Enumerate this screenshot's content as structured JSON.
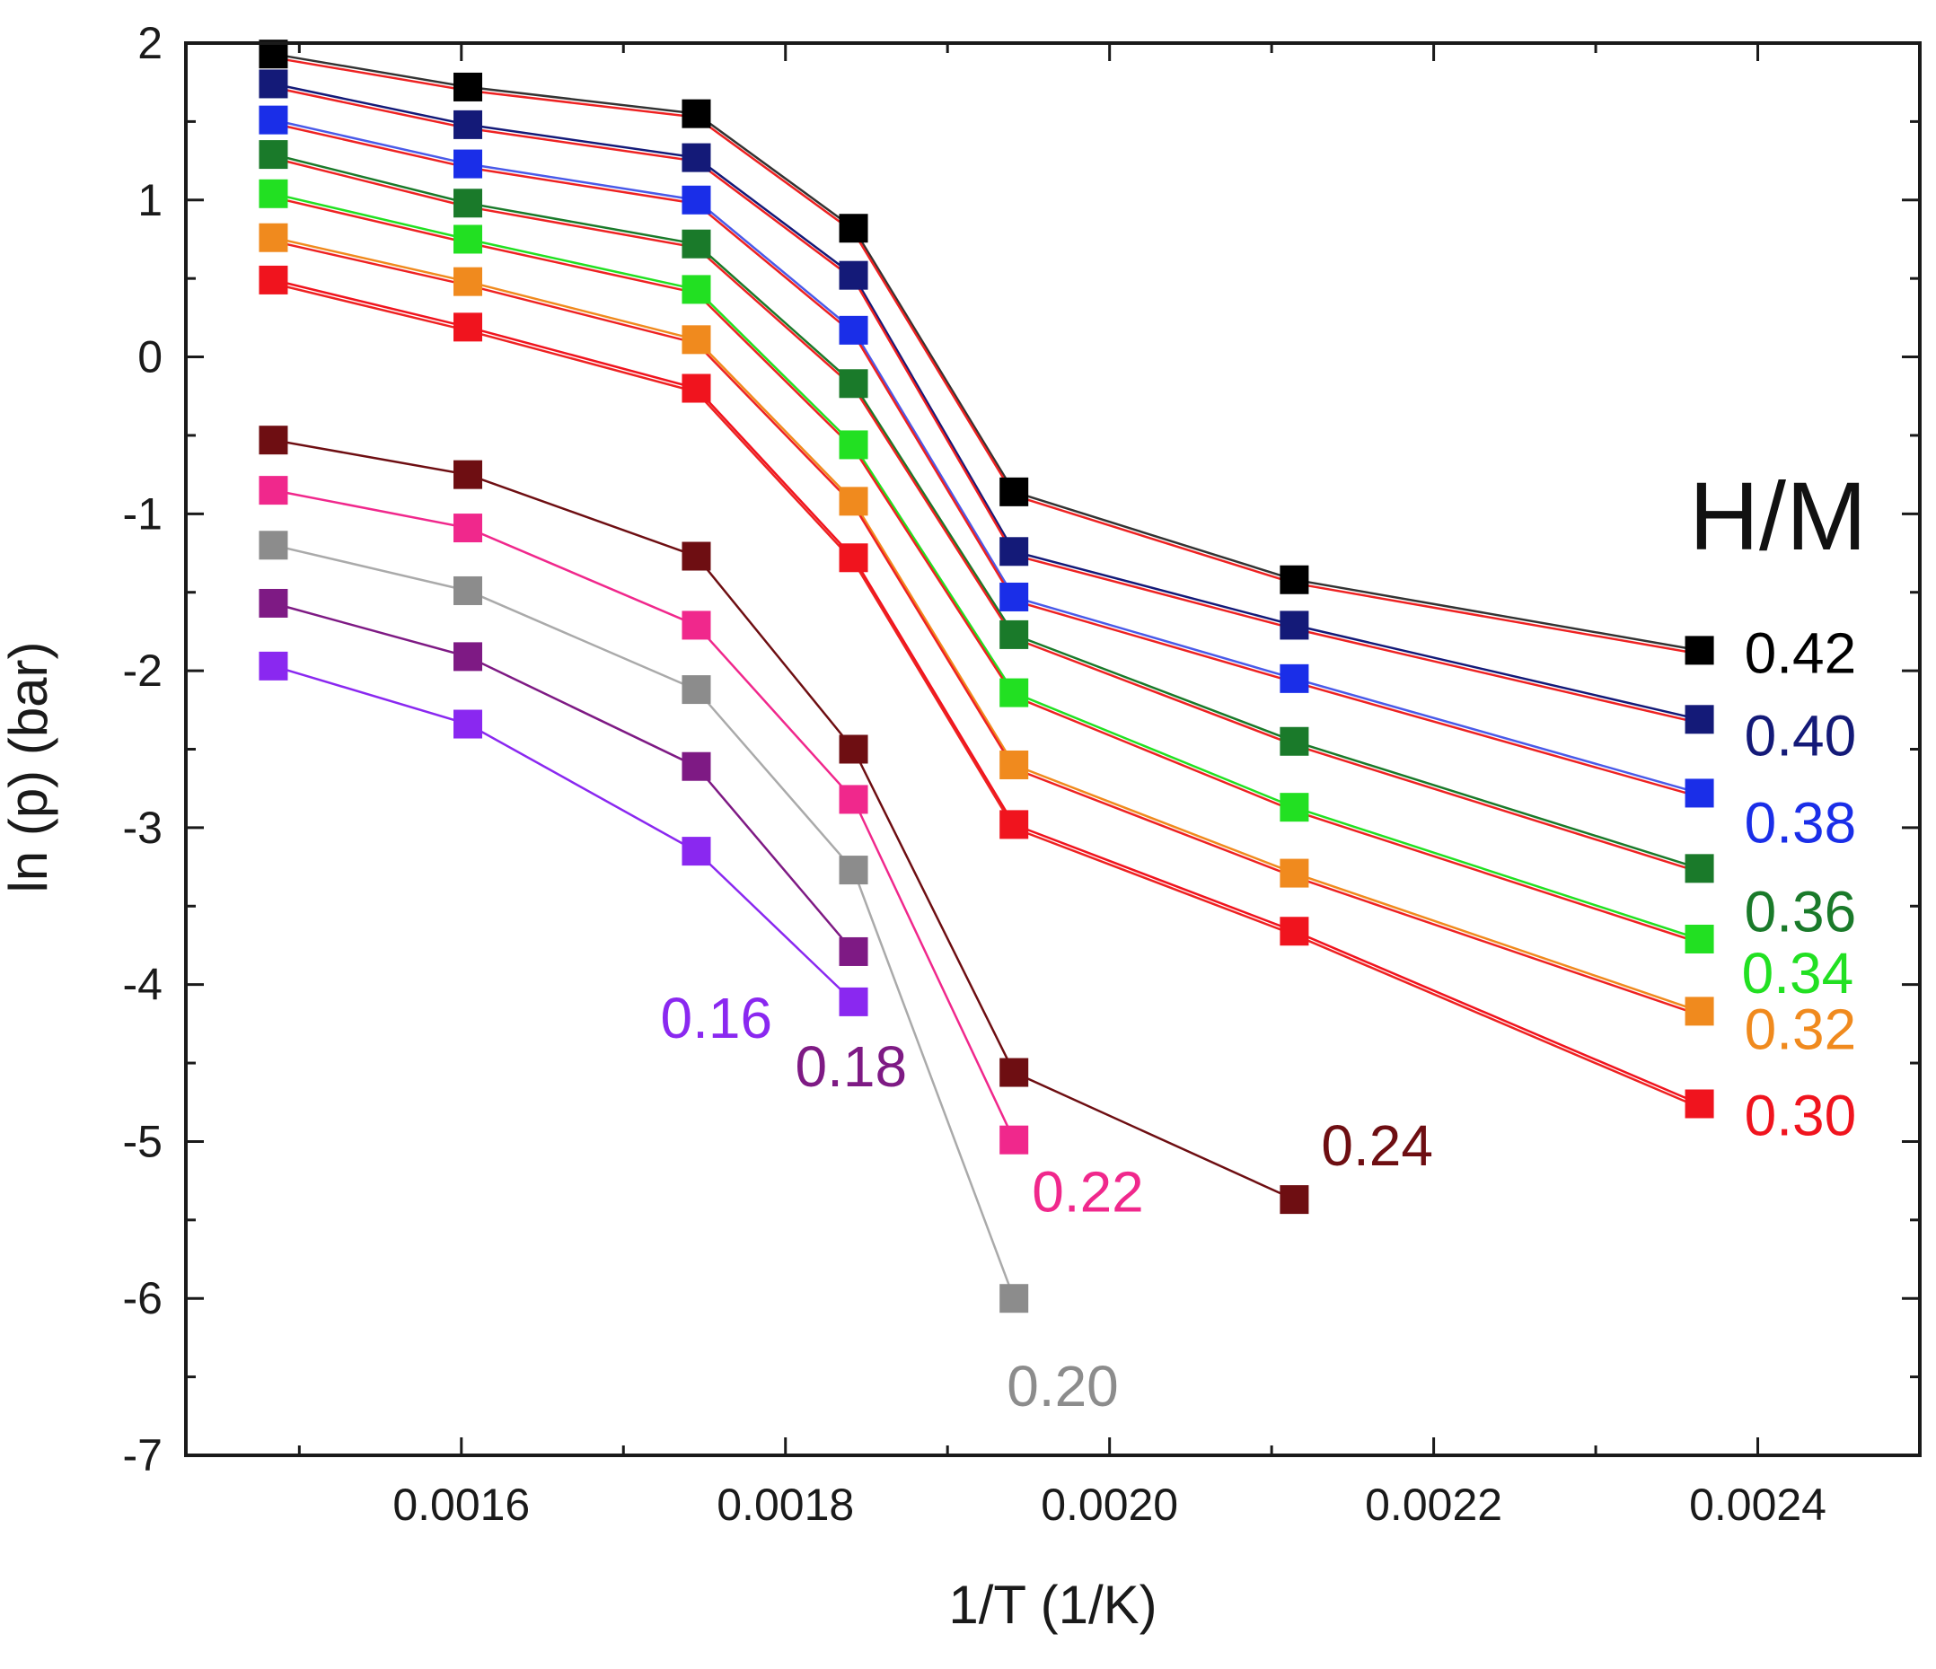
{
  "chart_data": {
    "type": "line",
    "title": "",
    "xlabel": "1/T (1/K)",
    "ylabel": "ln (p) (bar)",
    "xlim": [
      0.00143,
      0.0025
    ],
    "ylim": [
      -7,
      2
    ],
    "x_major_ticks": [
      0.0016,
      0.0018,
      0.002,
      0.0022,
      0.0024
    ],
    "x_tick_labels": [
      "0.0016",
      "0.0018",
      "0.0020",
      "0.0022",
      "0.0024"
    ],
    "x_minor_ticks": [
      0.0015,
      0.0017,
      0.0019,
      0.0021,
      0.0023
    ],
    "y_major_ticks": [
      2,
      1,
      0,
      -1,
      -2,
      -3,
      -4,
      -5,
      -6,
      -7
    ],
    "y_tick_labels": [
      "2",
      "1",
      "0",
      "-1",
      "-2",
      "-3",
      "-4",
      "-5",
      "-6",
      "-7"
    ],
    "y_minor_ticks": [
      1.5,
      0.5,
      -0.5,
      -1.5,
      -2.5,
      -3.5,
      -4.5,
      -5.5,
      -6.5
    ],
    "grid": false,
    "legend_title": "H/M",
    "x": [
      0.001484,
      0.001604,
      0.001745,
      0.001842,
      0.001941,
      0.002114,
      0.002364
    ],
    "series": [
      {
        "name": "0.42",
        "color": "#000000",
        "line_color": "#333333",
        "values": [
          1.93,
          1.72,
          1.55,
          0.82,
          -0.86,
          -1.42,
          -1.87
        ]
      },
      {
        "name": "0.40",
        "color": "#141a78",
        "line_color": "#141a78",
        "values": [
          1.74,
          1.48,
          1.27,
          0.52,
          -1.24,
          -1.71,
          -2.31
        ]
      },
      {
        "name": "0.38",
        "color": "#1a2ee8",
        "line_color": "#4a5ae8",
        "values": [
          1.51,
          1.23,
          1.0,
          0.17,
          -1.53,
          -2.05,
          -2.78
        ]
      },
      {
        "name": "0.36",
        "color": "#1a7a2a",
        "line_color": "#1a7a2a",
        "values": [
          1.29,
          0.98,
          0.72,
          -0.17,
          -1.77,
          -2.45,
          -3.26
        ]
      },
      {
        "name": "0.34",
        "color": "#22e022",
        "line_color": "#22e022",
        "values": [
          1.04,
          0.75,
          0.43,
          -0.56,
          -2.14,
          -2.87,
          -3.71
        ]
      },
      {
        "name": "0.32",
        "color": "#f08a1e",
        "line_color": "#f08a1e",
        "values": [
          0.76,
          0.48,
          0.11,
          -0.92,
          -2.6,
          -3.29,
          -4.17
        ]
      },
      {
        "name": "0.30",
        "color": "#f0141e",
        "line_color": "#f0141e",
        "values": [
          0.49,
          0.19,
          -0.2,
          -1.28,
          -2.98,
          -3.66,
          -4.76
        ]
      },
      {
        "name": "0.24",
        "color": "#6e0e12",
        "line_color": "#6e0e12",
        "values": [
          -0.53,
          -0.75,
          -1.27,
          -2.5,
          -4.56,
          -5.37,
          null
        ]
      },
      {
        "name": "0.22",
        "color": "#f0288c",
        "line_color": "#f0288c",
        "values": [
          -0.85,
          -1.09,
          -1.71,
          -2.82,
          -4.99,
          null,
          null
        ]
      },
      {
        "name": "0.20",
        "color": "#8c8c8c",
        "line_color": "#aaaaaa",
        "values": [
          -1.2,
          -1.49,
          -2.12,
          -3.27,
          -6.0,
          null,
          null
        ]
      },
      {
        "name": "0.18",
        "color": "#7e1a84",
        "line_color": "#7e1a84",
        "values": [
          -1.57,
          -1.91,
          -2.61,
          -3.79,
          null,
          null,
          null
        ]
      },
      {
        "name": "0.16",
        "color": "#8a28f0",
        "line_color": "#8a28f0",
        "values": [
          -1.97,
          -2.34,
          -3.15,
          -4.11,
          null,
          null,
          null
        ]
      }
    ],
    "fit_line_color": "#ee2222",
    "fit_lines": [
      "0.42",
      "0.40",
      "0.38",
      "0.36",
      "0.34",
      "0.32",
      "0.30"
    ],
    "annotations": [
      {
        "text": "0.42",
        "series": "0.42",
        "color": "#000000"
      },
      {
        "text": "0.40",
        "series": "0.40",
        "color": "#141a78"
      },
      {
        "text": "0.38",
        "series": "0.38",
        "color": "#1a2ee8"
      },
      {
        "text": "0.36",
        "series": "0.36",
        "color": "#1a7a2a"
      },
      {
        "text": "0.34",
        "series": "0.34",
        "color": "#22e022"
      },
      {
        "text": "0.32",
        "series": "0.32",
        "color": "#f08a1e"
      },
      {
        "text": "0.30",
        "series": "0.30",
        "color": "#f0141e"
      },
      {
        "text": "0.24",
        "series": "0.24",
        "color": "#6e0e12"
      },
      {
        "text": "0.22",
        "series": "0.22",
        "color": "#f0288c"
      },
      {
        "text": "0.20",
        "series": "0.20",
        "color": "#8c8c8c"
      },
      {
        "text": "0.18",
        "series": "0.18",
        "color": "#7e1a84"
      },
      {
        "text": "0.16",
        "series": "0.16",
        "color": "#8a28f0"
      }
    ]
  }
}
